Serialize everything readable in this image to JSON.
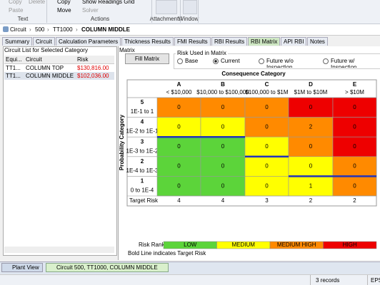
{
  "ribbon": {
    "groups": [
      {
        "label": "Text",
        "items": [
          "Copy",
          "Delete",
          "Paste"
        ]
      },
      {
        "label": "Actions",
        "items": [
          "Copy",
          "Move",
          "Show Readings Grid",
          "Solver"
        ]
      },
      {
        "label": "Attachments"
      },
      {
        "label": "Window"
      }
    ]
  },
  "breadcrumb": [
    "Circuit",
    "500",
    "TT1000",
    "COLUMN MIDDLE"
  ],
  "tabs": [
    {
      "label": "Summary"
    },
    {
      "label": "Circuit"
    },
    {
      "label": "Calculation Parameters"
    },
    {
      "label": "Thickness Results"
    },
    {
      "label": "FMI Results"
    },
    {
      "label": "RBI Results"
    },
    {
      "label": "RBI Matrix",
      "active": true
    },
    {
      "label": "API RBI"
    },
    {
      "label": "Notes"
    }
  ],
  "circuit_list": {
    "title": "Circuit List for Selected Category",
    "columns": [
      "Equi...",
      "Circuit",
      "Risk"
    ],
    "rows": [
      [
        "TT1...",
        "COLUMN TOP",
        "$130,816.00"
      ],
      [
        "TT1...",
        "COLUMN MIDDLE",
        "$102,036.00"
      ]
    ]
  },
  "matrix": {
    "title": "Matrix",
    "fill_button": "Fill Matrix",
    "risk_used": {
      "title": "Risk Used in Matrix",
      "options": [
        {
          "label": "Base"
        },
        {
          "label": "Current",
          "checked": true
        },
        {
          "label": "Future w/o Inspection"
        },
        {
          "label": "Future w/ Inspection"
        }
      ]
    },
    "consequence_title": "Consequence Category",
    "probability_title": "Probability Category",
    "columns": [
      {
        "letter": "A",
        "label": "< $10,000"
      },
      {
        "letter": "B",
        "label": "$10,000 to $100,000"
      },
      {
        "letter": "C",
        "label": "$100,000 to $1M"
      },
      {
        "letter": "D",
        "label": "$1M to $10M"
      },
      {
        "letter": "E",
        "label": "> $10M"
      }
    ],
    "rows": [
      {
        "category": 5,
        "label": "1E-1 to 1",
        "values": [
          0,
          0,
          0,
          0,
          0
        ],
        "colors": [
          "#ff8a00",
          "#ff8a00",
          "#ff8a00",
          "#ee0000",
          "#ee0000"
        ]
      },
      {
        "category": 4,
        "label": "1E-2 to 1E-1",
        "values": [
          0,
          0,
          0,
          2,
          0
        ],
        "colors": [
          "#ffff00",
          "#ffff00",
          "#ff8a00",
          "#ff8a00",
          "#ee0000"
        ]
      },
      {
        "category": 3,
        "label": "1E-3 to 1E-2",
        "values": [
          0,
          0,
          0,
          0,
          0
        ],
        "colors": [
          "#5cd43a",
          "#5cd43a",
          "#ffff00",
          "#ff8a00",
          "#ee0000"
        ]
      },
      {
        "category": 2,
        "label": "1E-4 to 1E-3",
        "values": [
          0,
          0,
          0,
          0,
          0
        ],
        "colors": [
          "#5cd43a",
          "#5cd43a",
          "#ffff00",
          "#ffff00",
          "#ff8a00"
        ]
      },
      {
        "category": 1,
        "label": "0 to 1E-4",
        "values": [
          0,
          0,
          0,
          1,
          0
        ],
        "colors": [
          "#5cd43a",
          "#5cd43a",
          "#ffff00",
          "#ffff00",
          "#ff8a00"
        ]
      }
    ],
    "target_label": "Target Risk",
    "target_risk": [
      4,
      4,
      3,
      2,
      2
    ],
    "target_color": "#2233bb",
    "risk_rank": {
      "label": "Risk Rank",
      "levels": [
        {
          "label": "LOW",
          "color": "#5cd43a"
        },
        {
          "label": "MEDIUM",
          "color": "#ffff00"
        },
        {
          "label": "MEDIUM HIGH",
          "color": "#ff8a00"
        },
        {
          "label": "HIGH",
          "color": "#ee0000"
        }
      ]
    },
    "note": "Bold Line indicates Target Risk"
  },
  "bottom_tabs": [
    "Plant View",
    "Circuit  500, TT1000, COLUMN MIDDLE"
  ],
  "status": {
    "records": "3 records",
    "mode": "EPS"
  }
}
